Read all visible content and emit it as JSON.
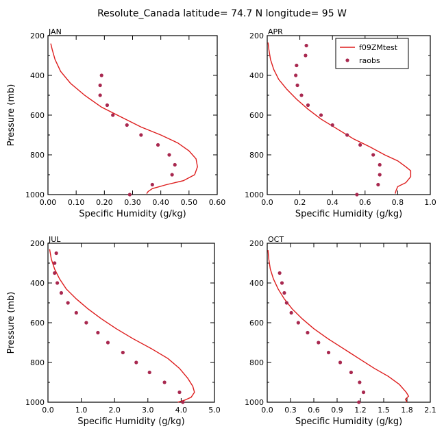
{
  "figure": {
    "title": "Resolute_Canada   latitude= 74.7 N longitude= 95 W"
  },
  "legend": {
    "model_label": "f09ZMtest",
    "obs_label": "raobs",
    "model_color": "#dd1c1c",
    "obs_color": "#a8284f"
  },
  "chart_data": [
    {
      "type": "line",
      "panel": "JAN",
      "xlabel": "Specific Humidity (g/kg)",
      "ylabel": "Pressure (mb)",
      "xlim": [
        0,
        0.6
      ],
      "ylim": [
        1000,
        200
      ],
      "xticks": [
        "0.00",
        "0.10",
        "0.20",
        "0.30",
        "0.40",
        "0.50",
        "0.60"
      ],
      "yticks": [
        "200",
        "400",
        "600",
        "800",
        "1000"
      ],
      "series": [
        {
          "name": "f09ZMtest",
          "style": "line",
          "x": [
            0.01,
            0.015,
            0.025,
            0.045,
            0.08,
            0.13,
            0.19,
            0.26,
            0.33,
            0.4,
            0.46,
            0.5,
            0.525,
            0.53,
            0.52,
            0.48,
            0.42,
            0.37,
            0.355,
            0.35
          ],
          "y": [
            240,
            270,
            320,
            380,
            440,
            500,
            560,
            610,
            660,
            700,
            740,
            780,
            820,
            860,
            900,
            930,
            950,
            970,
            985,
            995
          ]
        },
        {
          "name": "raobs",
          "style": "dots",
          "x": [
            0.19,
            0.185,
            0.185,
            0.21,
            0.23,
            0.28,
            0.33,
            0.39,
            0.43,
            0.45,
            0.44,
            0.37,
            0.29
          ],
          "y": [
            400,
            450,
            500,
            550,
            600,
            650,
            700,
            750,
            800,
            850,
            900,
            950,
            1000
          ]
        }
      ]
    },
    {
      "type": "line",
      "panel": "APR",
      "xlabel": "Specific Humidity (g/kg)",
      "ylabel": "",
      "xlim": [
        0,
        1.0
      ],
      "ylim": [
        1000,
        200
      ],
      "xticks": [
        "0.0",
        "0.2",
        "0.4",
        "0.6",
        "0.8",
        "1.0"
      ],
      "yticks": [
        "200",
        "400",
        "600",
        "800",
        "1000"
      ],
      "legend": "top-right",
      "series": [
        {
          "name": "f09ZMtest",
          "style": "line",
          "x": [
            0.005,
            0.01,
            0.02,
            0.04,
            0.07,
            0.12,
            0.18,
            0.25,
            0.33,
            0.43,
            0.53,
            0.63,
            0.72,
            0.8,
            0.85,
            0.88,
            0.88,
            0.85,
            0.8,
            0.79,
            0.785
          ],
          "y": [
            235,
            270,
            320,
            370,
            420,
            470,
            520,
            570,
            620,
            670,
            720,
            760,
            800,
            830,
            860,
            880,
            910,
            940,
            960,
            980,
            995
          ]
        },
        {
          "name": "raobs",
          "style": "dots",
          "x": [
            0.24,
            0.235,
            0.18,
            0.175,
            0.185,
            0.21,
            0.25,
            0.33,
            0.4,
            0.49,
            0.57,
            0.65,
            0.69,
            0.69,
            0.68,
            0.55
          ],
          "y": [
            250,
            300,
            350,
            400,
            450,
            500,
            550,
            600,
            650,
            700,
            750,
            800,
            850,
            900,
            950,
            1000
          ]
        }
      ]
    },
    {
      "type": "line",
      "panel": "JUL",
      "xlabel": "Specific Humidity (g/kg)",
      "ylabel": "Pressure (mb)",
      "xlim": [
        0,
        5.0
      ],
      "ylim": [
        1000,
        200
      ],
      "xticks": [
        "0.0",
        "1.0",
        "2.0",
        "3.0",
        "4.0",
        "5.0"
      ],
      "yticks": [
        "200",
        "400",
        "600",
        "800",
        "1000"
      ],
      "series": [
        {
          "name": "f09ZMtest",
          "style": "line",
          "x": [
            0.05,
            0.1,
            0.2,
            0.35,
            0.55,
            0.85,
            1.2,
            1.6,
            2.05,
            2.55,
            3.1,
            3.6,
            3.95,
            4.2,
            4.35,
            4.4,
            4.3,
            4.1,
            3.9
          ],
          "y": [
            230,
            280,
            330,
            380,
            430,
            480,
            530,
            580,
            630,
            680,
            730,
            780,
            830,
            880,
            920,
            950,
            975,
            990,
            1000
          ]
        },
        {
          "name": "raobs",
          "style": "dots",
          "x": [
            0.25,
            0.2,
            0.2,
            0.28,
            0.4,
            0.6,
            0.85,
            1.15,
            1.5,
            1.8,
            2.25,
            2.65,
            3.05,
            3.5,
            3.95,
            4.05
          ],
          "y": [
            250,
            300,
            350,
            400,
            450,
            500,
            550,
            600,
            650,
            700,
            750,
            800,
            850,
            900,
            950,
            1000
          ]
        }
      ]
    },
    {
      "type": "line",
      "panel": "OCT",
      "xlabel": "Specific Humidity (g/kg)",
      "ylabel": "",
      "xlim": [
        0,
        2.1
      ],
      "ylim": [
        1000,
        200
      ],
      "xticks": [
        "0.0",
        "0.3",
        "0.6",
        "0.9",
        "1.2",
        "1.5",
        "1.8",
        "2.1"
      ],
      "yticks": [
        "200",
        "400",
        "600",
        "800",
        "1000"
      ],
      "series": [
        {
          "name": "f09ZMtest",
          "style": "line",
          "x": [
            0.01,
            0.02,
            0.04,
            0.08,
            0.14,
            0.22,
            0.32,
            0.45,
            0.6,
            0.78,
            0.98,
            1.18,
            1.38,
            1.56,
            1.7,
            1.79,
            1.82,
            1.78,
            1.8
          ],
          "y": [
            235,
            280,
            330,
            380,
            430,
            480,
            530,
            580,
            630,
            680,
            730,
            780,
            830,
            870,
            910,
            950,
            970,
            985,
            1000
          ]
        },
        {
          "name": "raobs",
          "style": "dots",
          "x": [
            0.16,
            0.19,
            0.22,
            0.25,
            0.31,
            0.4,
            0.52,
            0.66,
            0.79,
            0.94,
            1.08,
            1.19,
            1.24,
            1.18
          ],
          "y": [
            350,
            400,
            450,
            500,
            550,
            600,
            650,
            700,
            750,
            800,
            850,
            900,
            950,
            1000
          ]
        }
      ]
    }
  ]
}
